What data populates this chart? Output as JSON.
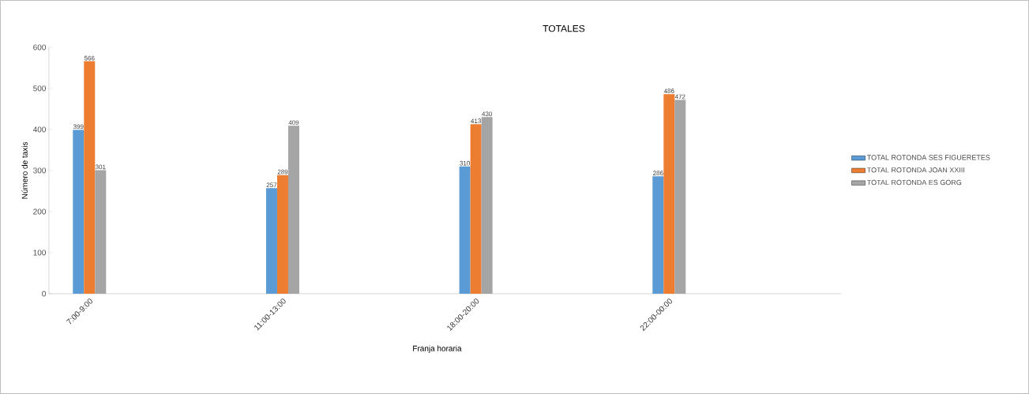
{
  "chart_data": {
    "type": "bar",
    "title": "TOTALES",
    "xlabel": "Franja horaria",
    "ylabel": "Número de taxis",
    "categories": [
      "7:00-9:00",
      "11:00-13:00",
      "18:00-20:00",
      "22:00-00:00"
    ],
    "series": [
      {
        "name": "TOTAL ROTONDA SES FIGUERETES",
        "color": "#5b9bd5",
        "values": [
          399,
          257,
          310,
          286
        ]
      },
      {
        "name": "TOTAL ROTONDA JOAN XXIII",
        "color": "#ed7d31",
        "values": [
          566,
          289,
          413,
          486
        ]
      },
      {
        "name": "TOTAL ROTONDA ES GORG",
        "color": "#a5a5a5",
        "values": [
          301,
          409,
          430,
          472
        ]
      }
    ],
    "ylim": [
      0,
      600
    ],
    "yticks": [
      0,
      100,
      200,
      300,
      400,
      500,
      600
    ],
    "data_labels": true,
    "grid": false,
    "legend": "right"
  }
}
